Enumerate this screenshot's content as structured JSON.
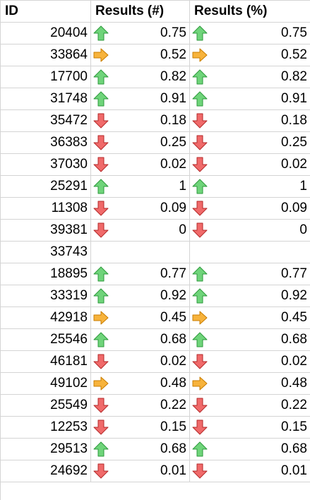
{
  "headers": {
    "id": "ID",
    "results_count": "Results (#)",
    "results_pct": "Results (%)"
  },
  "icon_colors": {
    "up": "#6fd47a",
    "up_stroke": "#2e9a3c",
    "side": "#f7b33c",
    "side_stroke": "#c97d00",
    "down": "#f06a6a",
    "down_stroke": "#b52a2a"
  },
  "rows": [
    {
      "id": "20404",
      "icon": "up-arrow-icon",
      "count": "0.75",
      "pct": "0.75"
    },
    {
      "id": "33864",
      "icon": "right-arrow-icon",
      "count": "0.52",
      "pct": "0.52"
    },
    {
      "id": "17700",
      "icon": "up-arrow-icon",
      "count": "0.82",
      "pct": "0.82"
    },
    {
      "id": "31748",
      "icon": "up-arrow-icon",
      "count": "0.91",
      "pct": "0.91"
    },
    {
      "id": "35472",
      "icon": "down-arrow-icon",
      "count": "0.18",
      "pct": "0.18"
    },
    {
      "id": "36383",
      "icon": "down-arrow-icon",
      "count": "0.25",
      "pct": "0.25"
    },
    {
      "id": "37030",
      "icon": "down-arrow-icon",
      "count": "0.02",
      "pct": "0.02"
    },
    {
      "id": "25291",
      "icon": "up-arrow-icon",
      "count": "1",
      "pct": "1"
    },
    {
      "id": "11308",
      "icon": "down-arrow-icon",
      "count": "0.09",
      "pct": "0.09"
    },
    {
      "id": "39381",
      "icon": "down-arrow-icon",
      "count": "0",
      "pct": "0"
    },
    {
      "id": "33743",
      "icon": "",
      "count": "",
      "pct": ""
    },
    {
      "id": "18895",
      "icon": "up-arrow-icon",
      "count": "0.77",
      "pct": "0.77"
    },
    {
      "id": "33319",
      "icon": "up-arrow-icon",
      "count": "0.92",
      "pct": "0.92"
    },
    {
      "id": "42918",
      "icon": "right-arrow-icon",
      "count": "0.45",
      "pct": "0.45"
    },
    {
      "id": "25546",
      "icon": "up-arrow-icon",
      "count": "0.68",
      "pct": "0.68"
    },
    {
      "id": "46181",
      "icon": "down-arrow-icon",
      "count": "0.02",
      "pct": "0.02"
    },
    {
      "id": "49102",
      "icon": "right-arrow-icon",
      "count": "0.48",
      "pct": "0.48"
    },
    {
      "id": "25549",
      "icon": "down-arrow-icon",
      "count": "0.22",
      "pct": "0.22"
    },
    {
      "id": "12253",
      "icon": "down-arrow-icon",
      "count": "0.15",
      "pct": "0.15"
    },
    {
      "id": "29513",
      "icon": "up-arrow-icon",
      "count": "0.68",
      "pct": "0.68"
    },
    {
      "id": "24692",
      "icon": "down-arrow-icon",
      "count": "0.01",
      "pct": "0.01"
    }
  ]
}
